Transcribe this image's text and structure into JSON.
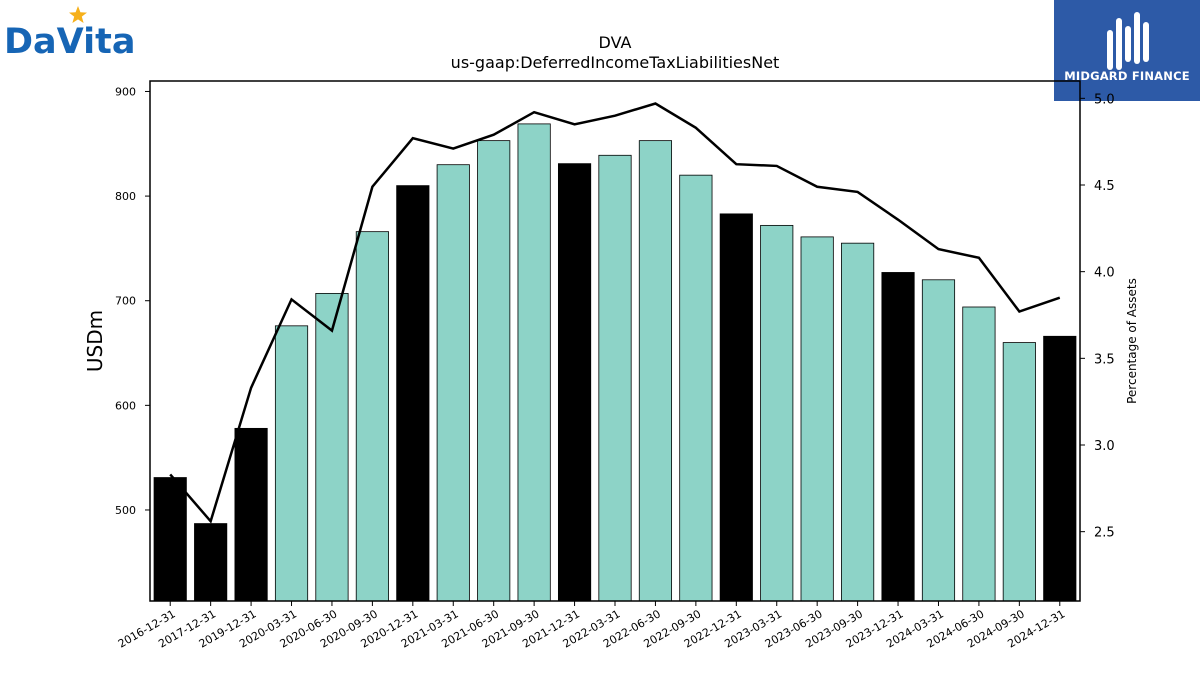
{
  "logos": {
    "left_brand": "DaVita",
    "right_brand": "MIDGARD FINANCE"
  },
  "colors": {
    "annual_bar": "#000000",
    "quarterly_bar": "#8dd3c7",
    "line": "#000000",
    "brand_blue": "#1665b5",
    "brand_star": "#f6b01a",
    "midgard_bg": "#2d5aa7"
  },
  "chart_data": {
    "type": "bar",
    "title": "DVA",
    "subtitle": "us-gaap:DeferredIncomeTaxLiabilitiesNet",
    "ylabel": "USDm",
    "y2label": "Percentage of Assets",
    "ylim": [
      413,
      910
    ],
    "y2lim": [
      2.1,
      5.1
    ],
    "yticks": [
      500,
      600,
      700,
      800,
      900
    ],
    "y2ticks": [
      2.5,
      3.0,
      3.5,
      4.0,
      4.5,
      5.0
    ],
    "y2tick_labels": [
      "2.5",
      "3.0",
      "3.5",
      "4.0",
      "4.5",
      "5.0"
    ],
    "categories": [
      "2016-12-31",
      "2017-12-31",
      "2019-12-31",
      "2020-03-31",
      "2020-06-30",
      "2020-09-30",
      "2020-12-31",
      "2021-03-31",
      "2021-06-30",
      "2021-09-30",
      "2021-12-31",
      "2022-03-31",
      "2022-06-30",
      "2022-09-30",
      "2022-12-31",
      "2023-03-31",
      "2023-06-30",
      "2023-09-30",
      "2023-12-31",
      "2024-03-31",
      "2024-06-30",
      "2024-09-30",
      "2024-12-31"
    ],
    "series": [
      {
        "values": [
          531,
          487,
          578,
          676,
          707,
          766,
          810,
          830,
          853,
          869,
          831,
          839,
          853,
          820,
          783,
          772,
          761,
          755,
          727,
          720,
          694,
          660,
          666
        ],
        "annual": [
          true,
          true,
          true,
          false,
          false,
          false,
          true,
          false,
          false,
          false,
          true,
          false,
          false,
          false,
          true,
          false,
          false,
          false,
          true,
          false,
          false,
          false,
          true
        ]
      },
      {
        "axis": "right",
        "values": [
          2.83,
          2.56,
          3.33,
          3.84,
          3.66,
          4.49,
          4.77,
          4.71,
          4.79,
          4.92,
          4.85,
          4.9,
          4.97,
          4.83,
          4.62,
          4.61,
          4.49,
          4.46,
          4.3,
          4.13,
          4.08,
          3.77,
          3.85
        ]
      }
    ],
    "grid": false,
    "legend": "none"
  }
}
